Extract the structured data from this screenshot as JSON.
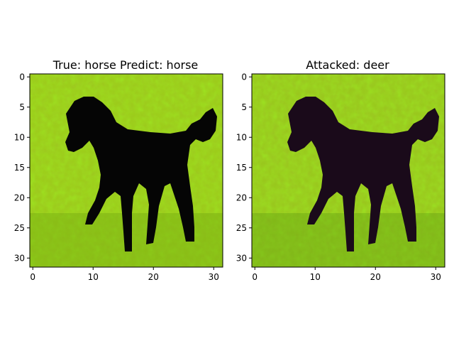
{
  "figure": {
    "panels": [
      {
        "title": "True: horse  Predict: horse",
        "variant": "original"
      },
      {
        "title": "Attacked: deer",
        "variant": "attacked"
      }
    ],
    "x_ticks": [
      "0",
      "10",
      "20",
      "30"
    ],
    "y_ticks": [
      "0",
      "5",
      "10",
      "15",
      "20",
      "25",
      "30"
    ],
    "image_grid": "32x32",
    "colors": {
      "background_green": "#9ccc1a",
      "dark_green": "#3c8c0a",
      "silhouette_original": "#050505",
      "silhouette_attacked": "#1a0a1a"
    }
  }
}
